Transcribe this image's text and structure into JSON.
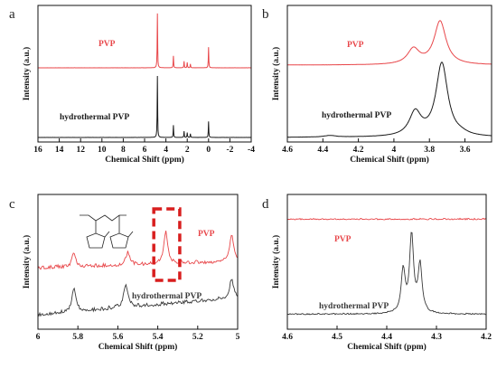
{
  "chart_data": [
    {
      "panel": "a",
      "type": "line",
      "xlabel": "Chemical Shift (ppm)",
      "ylabel": "Intensity (a.u.)",
      "xlim": [
        16,
        -4
      ],
      "x_reversed": true,
      "xticks": [
        16,
        14,
        12,
        10,
        8,
        6,
        4,
        2,
        0,
        -2,
        -4
      ],
      "series": [
        {
          "name": "PVP",
          "color": "#e8474a",
          "peaks": [
            {
              "ppm": 4.8,
              "height": 1.0
            },
            {
              "ppm": 3.3,
              "height": 0.22
            },
            {
              "ppm": 2.3,
              "height": 0.12
            },
            {
              "ppm": 2.0,
              "height": 0.1
            },
            {
              "ppm": 1.7,
              "height": 0.07
            },
            {
              "ppm": 0.0,
              "height": 0.38
            }
          ]
        },
        {
          "name": "hydrothermal PVP",
          "color": "#1a1a1a",
          "peaks": [
            {
              "ppm": 4.8,
              "height": 1.0
            },
            {
              "ppm": 3.3,
              "height": 0.2
            },
            {
              "ppm": 2.3,
              "height": 0.1
            },
            {
              "ppm": 2.0,
              "height": 0.08
            },
            {
              "ppm": 1.7,
              "height": 0.06
            },
            {
              "ppm": 0.0,
              "height": 0.26
            }
          ]
        }
      ]
    },
    {
      "panel": "b",
      "type": "line",
      "xlabel": "Chemical Shift (ppm)",
      "ylabel": "Intensity (a.u.)",
      "xlim": [
        4.6,
        3.45
      ],
      "x_reversed": true,
      "xticks": [
        4.6,
        4.4,
        4.2,
        4.0,
        3.8,
        3.6
      ],
      "series": [
        {
          "name": "PVP",
          "color": "#e8474a",
          "peaks": [
            {
              "ppm": 3.89,
              "height": 0.35
            },
            {
              "ppm": 3.74,
              "height": 1.0
            }
          ]
        },
        {
          "name": "hydrothermal PVP",
          "color": "#1a1a1a",
          "peaks": [
            {
              "ppm": 3.88,
              "height": 0.45
            },
            {
              "ppm": 3.73,
              "height": 1.4
            },
            {
              "ppm": 4.36,
              "height": 0.03
            },
            {
              "ppm": 3.62,
              "height": 0.03
            }
          ]
        }
      ]
    },
    {
      "panel": "c",
      "type": "line",
      "xlabel": "Chemical Shift (ppm)",
      "ylabel": "Intensity (a.u.)",
      "xlim": [
        6.0,
        5.0
      ],
      "x_reversed": true,
      "xticks": [
        6.0,
        5.8,
        5.6,
        5.4,
        5.2,
        5.0
      ],
      "highlight_ppm": [
        5.42,
        5.29
      ],
      "series": [
        {
          "name": "PVP",
          "color": "#e8474a",
          "peaks": [
            {
              "ppm": 5.82,
              "height": 0.35
            },
            {
              "ppm": 5.55,
              "height": 0.35
            },
            {
              "ppm": 5.36,
              "height": 0.9
            },
            {
              "ppm": 5.03,
              "height": 0.75
            }
          ]
        },
        {
          "name": "hydrothermal PVP",
          "color": "#3a3a3a",
          "peaks": [
            {
              "ppm": 5.82,
              "height": 0.7
            },
            {
              "ppm": 5.56,
              "height": 0.7
            },
            {
              "ppm": 5.03,
              "height": 0.55
            }
          ]
        }
      ]
    },
    {
      "panel": "d",
      "type": "line",
      "xlabel": "Chemical Shift (ppm)",
      "ylabel": "Intensity (a.u.)",
      "xlim": [
        4.6,
        4.2
      ],
      "x_reversed": true,
      "xticks": [
        4.6,
        4.5,
        4.4,
        4.3,
        4.2
      ],
      "series": [
        {
          "name": "PVP",
          "color": "#e8474a",
          "peaks": []
        },
        {
          "name": "hydrothermal PVP",
          "color": "#3a3a3a",
          "peaks": [
            {
              "ppm": 4.367,
              "height": 0.55
            },
            {
              "ppm": 4.35,
              "height": 1.0
            },
            {
              "ppm": 4.333,
              "height": 0.62
            }
          ]
        }
      ]
    }
  ]
}
